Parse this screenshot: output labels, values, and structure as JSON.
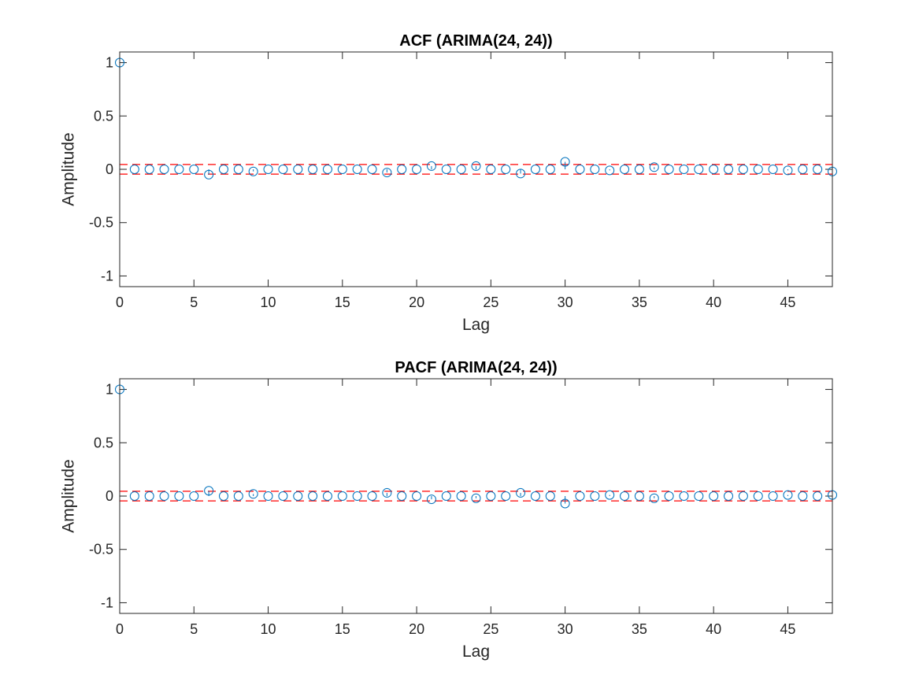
{
  "chart_data": [
    {
      "type": "stem",
      "title": "ACF (ARIMA(24, 24))",
      "xlabel": "Lag",
      "ylabel": "Amplitude",
      "xlim": [
        0,
        48
      ],
      "ylim": [
        -1.1,
        1.1
      ],
      "xticks": [
        0,
        5,
        10,
        15,
        20,
        25,
        30,
        35,
        40,
        45
      ],
      "yticks": [
        -1,
        -0.5,
        0,
        0.5,
        1
      ],
      "xtick_labels": [
        "0",
        "5",
        "10",
        "15",
        "20",
        "25",
        "30",
        "35",
        "40",
        "45"
      ],
      "ytick_labels": [
        "-1",
        "-0.5",
        "0",
        "0.5",
        "1"
      ],
      "confidence_bound": 0.045,
      "grid": false,
      "series": [
        {
          "x": [
            0,
            1,
            2,
            3,
            4,
            5,
            6,
            7,
            8,
            9,
            10,
            11,
            12,
            13,
            14,
            15,
            16,
            17,
            18,
            19,
            20,
            21,
            22,
            23,
            24,
            25,
            26,
            27,
            28,
            29,
            30,
            31,
            32,
            33,
            34,
            35,
            36,
            37,
            38,
            39,
            40,
            41,
            42,
            43,
            44,
            45,
            46,
            47,
            48
          ],
          "values": [
            1,
            0.0,
            0.0,
            0.0,
            0.0,
            0.0,
            -0.05,
            0.0,
            0.0,
            -0.02,
            0.0,
            0.0,
            0.0,
            0.0,
            0.0,
            0.0,
            0.0,
            0.0,
            -0.03,
            0.0,
            0.0,
            0.03,
            0.0,
            0.0,
            0.03,
            0.0,
            0.0,
            -0.04,
            0.0,
            0.0,
            0.07,
            0.0,
            0.0,
            -0.01,
            0.0,
            0.0,
            0.02,
            0.0,
            0.0,
            0.0,
            0.0,
            0.0,
            0.0,
            0.0,
            0.0,
            -0.01,
            0.0,
            0.0,
            -0.02
          ]
        }
      ]
    },
    {
      "type": "stem",
      "title": "PACF (ARIMA(24, 24))",
      "xlabel": "Lag",
      "ylabel": "Amplitude",
      "xlim": [
        0,
        48
      ],
      "ylim": [
        -1.1,
        1.1
      ],
      "xticks": [
        0,
        5,
        10,
        15,
        20,
        25,
        30,
        35,
        40,
        45
      ],
      "yticks": [
        -1,
        -0.5,
        0,
        0.5,
        1
      ],
      "xtick_labels": [
        "0",
        "5",
        "10",
        "15",
        "20",
        "25",
        "30",
        "35",
        "40",
        "45"
      ],
      "ytick_labels": [
        "-1",
        "-0.5",
        "0",
        "0.5",
        "1"
      ],
      "confidence_bound": 0.045,
      "grid": false,
      "series": [
        {
          "x": [
            0,
            1,
            2,
            3,
            4,
            5,
            6,
            7,
            8,
            9,
            10,
            11,
            12,
            13,
            14,
            15,
            16,
            17,
            18,
            19,
            20,
            21,
            22,
            23,
            24,
            25,
            26,
            27,
            28,
            29,
            30,
            31,
            32,
            33,
            34,
            35,
            36,
            37,
            38,
            39,
            40,
            41,
            42,
            43,
            44,
            45,
            46,
            47,
            48
          ],
          "values": [
            1,
            0.0,
            0.0,
            0.0,
            0.0,
            0.0,
            0.05,
            0.0,
            0.0,
            0.02,
            0.0,
            0.0,
            0.0,
            0.0,
            0.0,
            0.0,
            0.0,
            0.0,
            0.03,
            0.0,
            0.0,
            -0.03,
            0.0,
            0.0,
            -0.02,
            0.0,
            0.0,
            0.03,
            0.0,
            0.0,
            -0.07,
            0.0,
            0.0,
            0.01,
            0.0,
            0.0,
            -0.02,
            0.0,
            0.0,
            0.0,
            0.0,
            0.0,
            0.0,
            0.0,
            0.0,
            0.01,
            0.0,
            0.0,
            0.01
          ]
        }
      ]
    }
  ],
  "colors": {
    "stem": "#0072BD",
    "bound": "#FF0000",
    "axes": "#262626",
    "title": "#000000"
  }
}
